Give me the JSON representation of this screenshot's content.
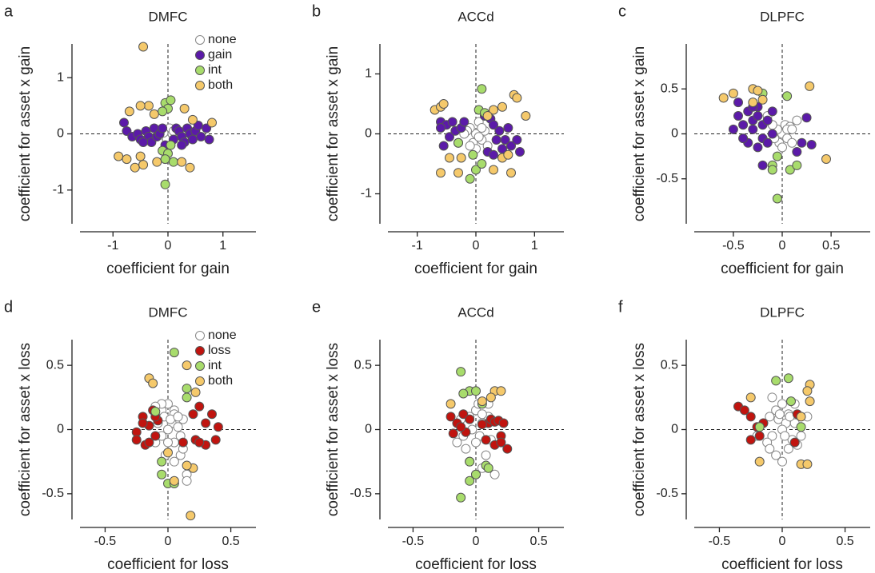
{
  "chart_data": [
    {
      "type": "scatter",
      "panel": "a",
      "title": "DMFC",
      "xlabel": "coefficient for gain",
      "ylabel": "coefficient for asset x gain",
      "xlim": [
        -1.6,
        1.6
      ],
      "ylim": [
        -1.6,
        1.6
      ],
      "xticks": [
        -1,
        0,
        1
      ],
      "yticks": [
        -1,
        0,
        1
      ],
      "legend": "upper right",
      "series": [
        {
          "name": "none",
          "color": "#ffffff",
          "x": [
            0,
            0.05,
            -0.05,
            0.03,
            -0.02,
            0.08,
            0.1,
            -0.08
          ],
          "y": [
            0,
            0.05,
            -0.05,
            0.1,
            -0.1,
            0,
            0.05,
            0.02
          ]
        },
        {
          "name": "gain",
          "color": "#5b1aa8",
          "x": [
            -0.8,
            -0.75,
            -0.65,
            -0.55,
            -0.5,
            -0.4,
            -0.35,
            -0.3,
            -0.25,
            -0.2,
            -0.15,
            -0.1,
            -0.05,
            0.1,
            0.15,
            0.2,
            0.25,
            0.3,
            0.35,
            0.4,
            0.45,
            0.5,
            0.55,
            0.6,
            0.7,
            0.75,
            0.25,
            -0.45
          ],
          "y": [
            0.2,
            0.05,
            -0.05,
            0,
            -0.1,
            0.05,
            -0.05,
            -0.15,
            0.1,
            -0.05,
            0,
            0.1,
            -0.2,
            -0.1,
            0.1,
            0.05,
            -0.05,
            -0.15,
            0.1,
            0,
            -0.1,
            0.05,
            0.15,
            -0.05,
            0.1,
            -0.1,
            -0.2,
            -0.15
          ]
        },
        {
          "name": "int",
          "color": "#a8dc6c",
          "x": [
            -0.05,
            0.05,
            0,
            -0.1,
            -0.1,
            0,
            -0.05,
            0.05,
            -0.05,
            0.1
          ],
          "y": [
            0.55,
            0.6,
            0.45,
            0.4,
            -0.3,
            -0.35,
            -0.45,
            -0.2,
            -0.9,
            -0.5
          ]
        },
        {
          "name": "both",
          "color": "#f5c96b",
          "x": [
            -0.45,
            -0.35,
            -0.5,
            -0.7,
            0.3,
            -0.25,
            0.8,
            0.45,
            -0.9,
            -0.75,
            -0.6,
            -0.45,
            -0.2,
            0.4,
            0.25,
            -0.5
          ],
          "y": [
            1.55,
            0.5,
            0.5,
            0.4,
            0.45,
            0.35,
            0.2,
            0.25,
            -0.4,
            -0.45,
            -0.6,
            -0.55,
            -0.5,
            -0.6,
            -0.5,
            -0.4
          ]
        }
      ]
    },
    {
      "type": "scatter",
      "panel": "b",
      "title": "ACCd",
      "xlabel": "coefficient for gain",
      "ylabel": "coefficient for asset x gain",
      "xlim": [
        -1.5,
        1.5
      ],
      "ylim": [
        -1.5,
        1.5
      ],
      "xticks": [
        -1,
        0,
        1
      ],
      "yticks": [
        -1,
        0,
        1
      ],
      "series": [
        {
          "color": "#ffffff",
          "x": [
            0,
            -0.1,
            0.1,
            -0.05,
            0.05,
            -0.15,
            0.15,
            0,
            -0.1,
            0.1,
            -0.2,
            0.2,
            0.05
          ],
          "y": [
            0,
            0.1,
            -0.1,
            -0.15,
            0.2,
            0.05,
            0.05,
            -0.25,
            -0.2,
            0.1,
            0,
            -0.2,
            -0.05
          ]
        },
        {
          "color": "#5b1aa8",
          "x": [
            -0.6,
            -0.5,
            -0.45,
            -0.4,
            -0.35,
            -0.3,
            -0.55,
            -0.25,
            -0.2,
            0.25,
            0.3,
            0.35,
            0.4,
            0.45,
            0.5,
            0.55,
            0.6,
            0.7,
            0.75,
            0.2,
            0.3,
            0.15,
            -0.6
          ],
          "y": [
            0.2,
            0.15,
            -0.05,
            0.2,
            0.05,
            -0.15,
            -0.2,
            0.1,
            0.2,
            0.25,
            0.15,
            -0.1,
            0.05,
            -0.25,
            -0.1,
            0.1,
            -0.2,
            -0.1,
            -0.3,
            -0.3,
            -0.35,
            0.3,
            0.1
          ]
        },
        {
          "color": "#a8dc6c",
          "x": [
            0.1,
            0.05,
            0.15,
            -0.05,
            0,
            0.1,
            -0.1,
            -0.3
          ],
          "y": [
            0.75,
            0.4,
            0.35,
            -0.35,
            -0.6,
            -0.5,
            -0.75,
            -0.15
          ]
        },
        {
          "color": "#f5c96b",
          "x": [
            -0.7,
            -0.6,
            -0.55,
            0.65,
            0.7,
            0.45,
            0.3,
            0.85,
            0.2,
            -0.6,
            -0.3,
            -0.25,
            -0.45,
            0.45,
            0.6,
            0.3,
            0.55
          ],
          "y": [
            0.4,
            0.45,
            0.5,
            0.65,
            0.6,
            0.45,
            0.4,
            0.3,
            0.3,
            -0.65,
            -0.65,
            -0.4,
            -0.4,
            -0.4,
            -0.65,
            -0.6,
            -0.35
          ]
        }
      ]
    },
    {
      "type": "scatter",
      "panel": "c",
      "title": "DLPFC",
      "xlabel": "coefficient for gain",
      "ylabel": "coefficient for asset x gain",
      "xlim": [
        -0.9,
        0.9
      ],
      "ylim": [
        -1,
        1
      ],
      "xticks": [
        -0.5,
        0,
        0.5
      ],
      "yticks": [
        -0.5,
        0,
        0.5
      ],
      "series": [
        {
          "color": "#ffffff",
          "x": [
            0,
            -0.05,
            0.05,
            0.03,
            -0.03,
            0.08,
            -0.1,
            0.1,
            0,
            -0.08,
            0.15,
            0.05,
            -0.15,
            0.1
          ],
          "y": [
            0,
            0.05,
            -0.05,
            0.1,
            -0.1,
            0.08,
            0.1,
            -0.1,
            -0.15,
            -0.05,
            0.15,
            0.05,
            0.2,
            0.05
          ]
        },
        {
          "color": "#5b1aa8",
          "x": [
            -0.45,
            -0.4,
            -0.35,
            -0.3,
            -0.3,
            -0.25,
            -0.25,
            -0.2,
            -0.2,
            -0.15,
            -0.15,
            -0.1,
            -0.1,
            -0.35,
            -0.4,
            -0.5,
            -0.2,
            -0.25,
            0.25,
            0.2,
            0.3,
            0.15,
            -0.45,
            -0.3
          ],
          "y": [
            0.2,
            0.1,
            0.25,
            0.05,
            0.15,
            0.3,
            0.2,
            0.1,
            -0.05,
            0.15,
            -0.1,
            0.25,
            0,
            -0.1,
            -0.05,
            0.05,
            -0.35,
            -0.15,
            0.18,
            -0.1,
            -0.12,
            -0.2,
            0.35,
            0.3
          ]
        },
        {
          "color": "#a8dc6c",
          "x": [
            -0.2,
            0.05,
            -0.1,
            -0.1,
            0.08,
            -0.05,
            0.15,
            -0.05
          ],
          "y": [
            0.45,
            0.42,
            -0.35,
            -0.4,
            -0.4,
            -0.25,
            -0.35,
            -0.72
          ]
        },
        {
          "color": "#f5c96b",
          "x": [
            -0.6,
            -0.5,
            -0.3,
            -0.2,
            -0.25,
            0.28,
            0.45,
            -0.3
          ],
          "y": [
            0.4,
            0.45,
            0.5,
            0.38,
            0.48,
            0.53,
            -0.28,
            0.35
          ]
        }
      ]
    },
    {
      "type": "scatter",
      "panel": "d",
      "title": "DMFC",
      "xlabel": "coefficient for loss",
      "ylabel": "coefficient for asset x loss",
      "xlim": [
        -0.7,
        0.7
      ],
      "ylim": [
        -0.7,
        0.7
      ],
      "xticks": [
        -0.5,
        0,
        0.5
      ],
      "yticks": [
        -0.5,
        0,
        0.5
      ],
      "legend": "upper right",
      "series": [
        {
          "name": "none",
          "color": "#ffffff",
          "x": [
            0,
            -0.05,
            0.05,
            -0.03,
            0.03,
            0,
            -0.05,
            0.05,
            0,
            -0.08,
            0.08,
            -0.1,
            0.1,
            0.05,
            -0.02,
            0.1,
            0.15,
            0.12,
            -0.05,
            0.02,
            0.12,
            0.15,
            -0.1,
            0.05,
            0.08
          ],
          "y": [
            0.2,
            0.15,
            0.15,
            0.1,
            0.05,
            0,
            -0.05,
            -0.1,
            -0.1,
            0.05,
            0.02,
            -0.1,
            -0.05,
            0.12,
            -0.2,
            -0.2,
            -0.35,
            -0.15,
            0.2,
            0.08,
            0.08,
            -0.4,
            0.18,
            -0.25,
            0.1
          ]
        },
        {
          "name": "loss",
          "color": "#c0140f",
          "x": [
            -0.25,
            -0.2,
            -0.15,
            -0.12,
            -0.1,
            -0.08,
            -0.18,
            -0.25,
            -0.15,
            -0.1,
            0.2,
            0.25,
            0.3,
            0.35,
            0.38,
            0.3,
            0.22,
            0.25,
            0.4,
            0.12,
            -0.2
          ],
          "y": [
            -0.02,
            0.1,
            0.03,
            0.15,
            -0.05,
            0.07,
            -0.12,
            -0.08,
            -0.1,
            0.1,
            0.12,
            0.18,
            0.05,
            0.12,
            -0.08,
            -0.12,
            -0.08,
            -0.1,
            0.02,
            -0.1,
            0.05
          ]
        },
        {
          "name": "int",
          "color": "#a8dc6c",
          "x": [
            0.05,
            0.15,
            0.15,
            -0.05,
            -0.05,
            0,
            0.05,
            -0.1
          ],
          "y": [
            0.6,
            0.32,
            0.25,
            -0.25,
            -0.35,
            -0.42,
            -0.42,
            0.14
          ]
        },
        {
          "name": "both",
          "color": "#f5c96b",
          "x": [
            -0.15,
            -0.12,
            0.15,
            0.22,
            0.2,
            0.15,
            0,
            0.18,
            0.05
          ],
          "y": [
            0.4,
            0.36,
            0.5,
            0.29,
            -0.3,
            -0.28,
            -0.18,
            -0.67,
            -0.4
          ]
        }
      ]
    },
    {
      "type": "scatter",
      "panel": "e",
      "title": "ACCd",
      "xlabel": "coefficient for loss",
      "ylabel": "coefficient for asset x loss",
      "xlim": [
        -0.7,
        0.7
      ],
      "ylim": [
        -0.7,
        0.7
      ],
      "xticks": [
        -0.5,
        0,
        0.5
      ],
      "yticks": [
        -0.5,
        0,
        0.5
      ],
      "series": [
        {
          "color": "#ffffff",
          "x": [
            0,
            -0.05,
            0.05,
            -0.03,
            0.03,
            0,
            -0.08,
            0.08,
            -0.1,
            0.1,
            -0.05,
            0.05,
            0.02,
            -0.12,
            0.12,
            0,
            0.15,
            -0.15,
            0.1,
            0.05
          ],
          "y": [
            0.15,
            0.1,
            0.05,
            0,
            -0.05,
            -0.1,
            -0.15,
            -0.2,
            -0.05,
            0.1,
            -0.25,
            -0.3,
            0.2,
            0.08,
            -0.08,
            -0.35,
            -0.35,
            -0.1,
            0.2,
            0.12
          ]
        },
        {
          "color": "#c0140f",
          "x": [
            -0.2,
            -0.15,
            -0.1,
            -0.05,
            -0.08,
            -0.18,
            0.1,
            0.12,
            0.15,
            0.18,
            0.22,
            0.2,
            0.25,
            0.15,
            0.2,
            0.08,
            0.05,
            -0.12
          ],
          "y": [
            0.1,
            0.05,
            0.12,
            0.08,
            -0.02,
            -0.03,
            0.05,
            0.08,
            0.06,
            0.07,
            0.05,
            -0.05,
            -0.15,
            -0.12,
            -0.1,
            -0.08,
            0.04,
            0.02
          ]
        },
        {
          "color": "#a8dc6c",
          "x": [
            -0.12,
            -0.05,
            0,
            -0.1,
            0.05,
            -0.05,
            0.08,
            0.1,
            0,
            -0.05,
            -0.12
          ],
          "y": [
            0.45,
            0.3,
            0.3,
            0.28,
            0.2,
            -0.25,
            -0.28,
            -0.3,
            -0.35,
            -0.4,
            -0.53
          ]
        },
        {
          "color": "#f5c96b",
          "x": [
            -0.2,
            0.15,
            0.2,
            0.12,
            0.05
          ],
          "y": [
            0.2,
            0.3,
            0.3,
            0.25,
            0.22
          ]
        }
      ]
    },
    {
      "type": "scatter",
      "panel": "f",
      "title": "DLPFC",
      "xlabel": "coefficient for loss",
      "ylabel": "coefficient for asset x loss",
      "xlim": [
        -0.7,
        0.7
      ],
      "ylim": [
        -0.7,
        0.7
      ],
      "xticks": [
        -0.5,
        0,
        0.5
      ],
      "yticks": [
        -0.5,
        0,
        0.5
      ],
      "series": [
        {
          "color": "#ffffff",
          "x": [
            0,
            -0.05,
            0.05,
            -0.03,
            0.03,
            0,
            -0.08,
            0.08,
            -0.1,
            0.1,
            -0.12,
            0.12,
            -0.05,
            0.05,
            0.1,
            -0.15,
            0.15,
            -0.08,
            0,
            0.06,
            -0.02,
            0.02,
            -0.1,
            0.2,
            -0.2
          ],
          "y": [
            0.2,
            0.15,
            0.12,
            0.08,
            0.05,
            0,
            -0.05,
            -0.08,
            0.1,
            0.05,
            -0.1,
            -0.12,
            -0.2,
            -0.15,
            0.2,
            0.05,
            -0.05,
            0.25,
            -0.25,
            0.1,
            0.12,
            -0.05,
            -0.15,
            0.1,
            -0.05
          ]
        },
        {
          "color": "#c0140f",
          "x": [
            -0.35,
            -0.3,
            -0.25,
            -0.2,
            -0.18,
            -0.25,
            0.12,
            0.1,
            -0.15
          ],
          "y": [
            0.18,
            0.15,
            0.1,
            0.02,
            -0.05,
            -0.08,
            0.12,
            -0.1,
            0.05
          ]
        },
        {
          "color": "#a8dc6c",
          "x": [
            -0.05,
            0.05,
            0.07,
            -0.18,
            0.15
          ],
          "y": [
            0.38,
            0.4,
            0.22,
            0.02,
            0.02
          ]
        },
        {
          "color": "#f5c96b",
          "x": [
            -0.25,
            0.22,
            0.2,
            0.22,
            -0.18,
            0.15,
            0.2,
            0.15
          ],
          "y": [
            0.25,
            0.35,
            0.3,
            0.22,
            -0.25,
            -0.27,
            -0.27,
            0.1
          ]
        }
      ]
    }
  ]
}
